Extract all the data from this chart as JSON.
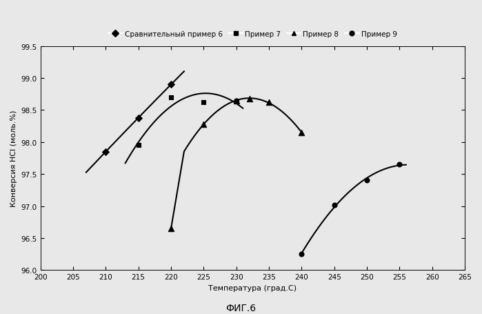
{
  "series": [
    {
      "label": "Сравнительный пример 6",
      "marker": "D",
      "markersize": 5,
      "x": [
        210,
        215,
        220
      ],
      "y": [
        97.85,
        98.38,
        98.9
      ],
      "curve_points": [
        [
          207,
          97.55
        ],
        [
          210,
          97.85
        ],
        [
          213,
          98.15
        ],
        [
          216,
          98.52
        ],
        [
          219,
          98.82
        ],
        [
          220,
          98.9
        ],
        [
          221,
          98.88
        ],
        [
          222,
          98.82
        ]
      ],
      "color": "black"
    },
    {
      "label": "Пример 7",
      "marker": "s",
      "markersize": 5,
      "x": [
        215,
        220,
        225,
        230
      ],
      "y": [
        97.95,
        98.7,
        98.62,
        98.65
      ],
      "curve_points": [
        [
          213,
          97.6
        ],
        [
          215,
          97.95
        ],
        [
          217,
          98.25
        ],
        [
          219,
          98.58
        ],
        [
          221,
          98.78
        ],
        [
          222,
          98.82
        ],
        [
          223,
          98.8
        ],
        [
          225,
          98.62
        ],
        [
          227,
          98.38
        ],
        [
          229,
          98.08
        ],
        [
          231,
          97.72
        ]
      ],
      "color": "black"
    },
    {
      "label": "Пример 8",
      "marker": "^",
      "markersize": 6,
      "x": [
        220,
        225,
        230,
        232,
        235,
        240
      ],
      "y": [
        96.65,
        98.28,
        98.65,
        98.68,
        98.62,
        98.15
      ],
      "curve_points": [
        [
          220,
          96.65
        ],
        [
          221,
          97.1
        ],
        [
          222,
          97.5
        ],
        [
          223,
          97.85
        ],
        [
          224,
          98.12
        ],
        [
          225,
          98.35
        ],
        [
          226,
          98.52
        ],
        [
          227,
          98.65
        ],
        [
          228,
          98.73
        ],
        [
          229,
          98.78
        ],
        [
          230,
          98.78
        ],
        [
          231,
          98.76
        ],
        [
          232,
          98.7
        ],
        [
          233,
          98.62
        ],
        [
          234,
          98.5
        ],
        [
          235,
          98.35
        ],
        [
          236,
          98.18
        ],
        [
          237,
          97.98
        ],
        [
          238,
          97.75
        ],
        [
          239,
          97.5
        ],
        [
          240,
          98.15
        ]
      ],
      "color": "black"
    },
    {
      "label": "Пример 9",
      "marker": "o",
      "markersize": 5,
      "x": [
        240,
        245,
        250,
        255
      ],
      "y": [
        96.25,
        97.02,
        97.4,
        97.65
      ],
      "curve_points": [
        [
          240,
          96.25
        ],
        [
          241,
          96.38
        ],
        [
          242,
          96.52
        ],
        [
          243,
          96.65
        ],
        [
          244,
          96.78
        ],
        [
          245,
          96.92
        ],
        [
          246,
          97.05
        ],
        [
          247,
          97.17
        ],
        [
          248,
          97.27
        ],
        [
          249,
          97.35
        ],
        [
          250,
          97.42
        ],
        [
          251,
          97.48
        ],
        [
          252,
          97.53
        ],
        [
          253,
          97.58
        ],
        [
          254,
          97.62
        ],
        [
          255,
          97.65
        ]
      ],
      "color": "black"
    }
  ],
  "xlabel": "Температура (град.С)",
  "ylabel": "Конверсия НСl (моль.%)",
  "figtext": "ФИГ.6",
  "xlim": [
    200,
    265
  ],
  "ylim": [
    96.0,
    99.5
  ],
  "xticks": [
    200,
    205,
    210,
    215,
    220,
    225,
    230,
    235,
    240,
    245,
    250,
    255,
    260,
    265
  ],
  "yticks": [
    96.0,
    96.5,
    97.0,
    97.5,
    98.0,
    98.5,
    99.0,
    99.5
  ],
  "background": "#f0f0f0",
  "line_color": "black"
}
